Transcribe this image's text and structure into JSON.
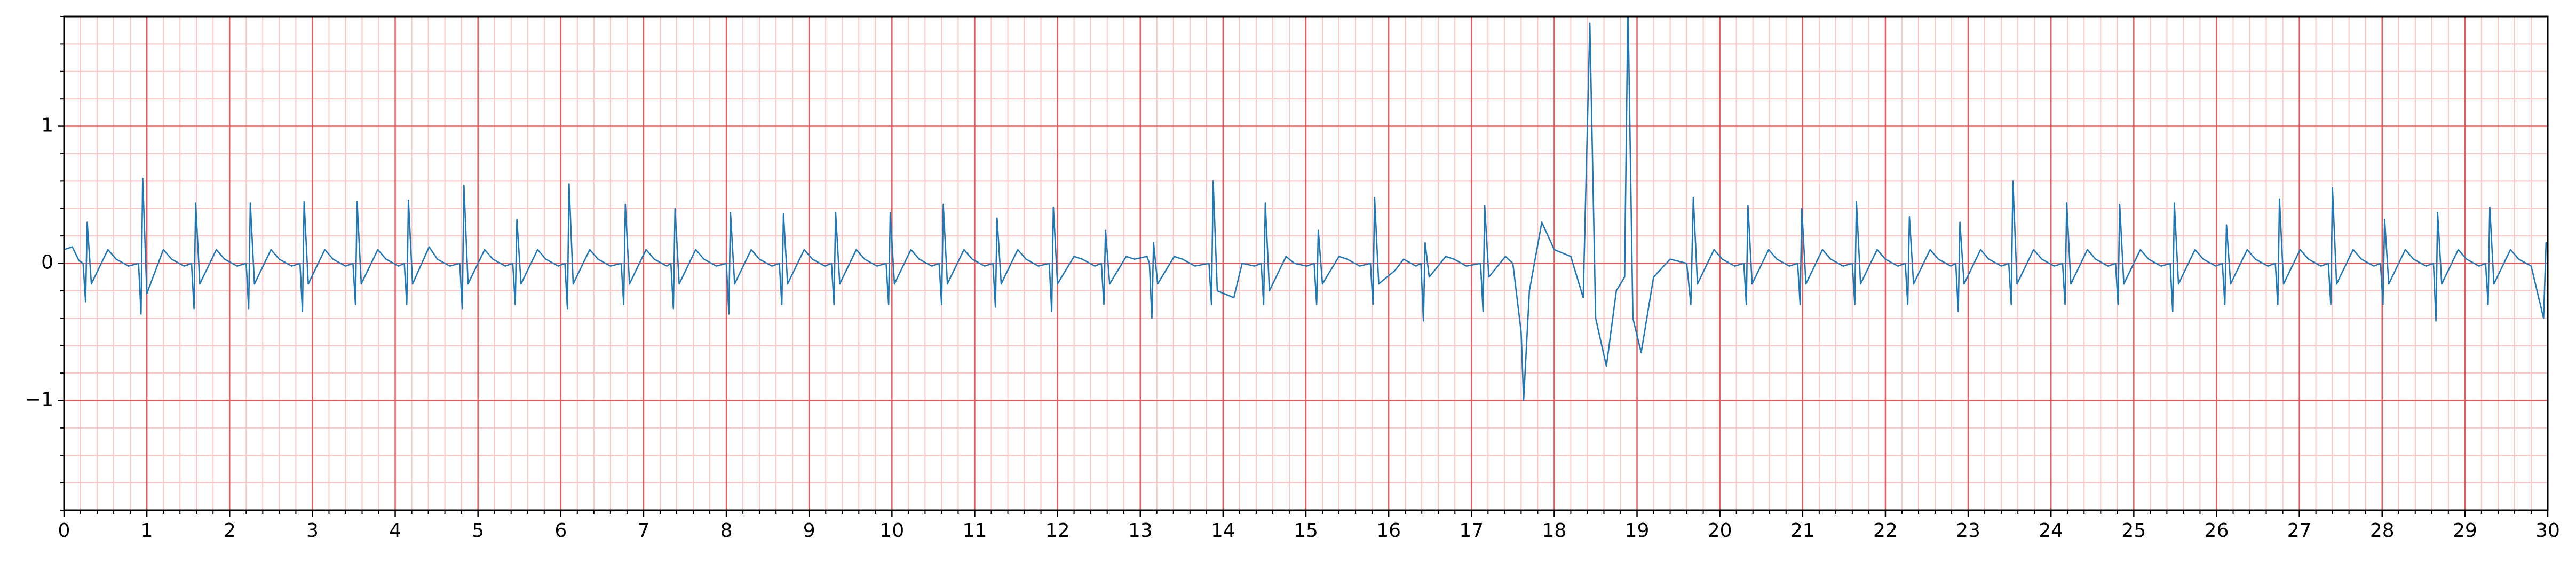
{
  "chart_data": {
    "type": "line",
    "color": "#1f77b4",
    "grid": true,
    "minor_divisions": 5,
    "xlim": [
      0,
      30
    ],
    "ylim": [
      -1.8,
      1.8
    ],
    "xticks": [
      0,
      1,
      2,
      3,
      4,
      5,
      6,
      7,
      8,
      9,
      10,
      11,
      12,
      13,
      14,
      15,
      16,
      17,
      18,
      19,
      20,
      21,
      22,
      23,
      24,
      25,
      26,
      27,
      28,
      29,
      30
    ],
    "yticks": [
      {
        "value": -1,
        "label": "−1"
      },
      0,
      1
    ],
    "x": [
      0,
      0.1,
      0.18,
      0.23,
      0.26,
      0.28,
      0.33,
      0.53,
      0.63,
      0.78,
      0.9,
      0.93,
      0.95,
      1.0,
      1.2,
      1.3,
      1.45,
      1.54,
      1.57,
      1.59,
      1.64,
      1.84,
      1.94,
      2.09,
      2.2,
      2.23,
      2.25,
      2.3,
      2.5,
      2.6,
      2.75,
      2.85,
      2.88,
      2.9,
      2.95,
      3.15,
      3.25,
      3.4,
      3.49,
      3.52,
      3.54,
      3.59,
      3.79,
      3.89,
      4.04,
      4.11,
      4.14,
      4.16,
      4.21,
      4.41,
      4.51,
      4.66,
      4.78,
      4.81,
      4.83,
      4.88,
      5.08,
      5.18,
      5.33,
      5.42,
      5.45,
      5.47,
      5.52,
      5.72,
      5.82,
      5.97,
      6.05,
      6.08,
      6.1,
      6.15,
      6.35,
      6.45,
      6.6,
      6.73,
      6.76,
      6.78,
      6.83,
      7.03,
      7.13,
      7.28,
      7.33,
      7.36,
      7.38,
      7.43,
      7.63,
      7.73,
      7.88,
      8.0,
      8.03,
      8.05,
      8.1,
      8.3,
      8.4,
      8.55,
      8.64,
      8.67,
      8.69,
      8.74,
      8.94,
      9.04,
      9.19,
      9.27,
      9.3,
      9.32,
      9.37,
      9.57,
      9.67,
      9.82,
      9.93,
      9.96,
      9.98,
      10.03,
      10.23,
      10.33,
      10.48,
      10.57,
      10.6,
      10.62,
      10.67,
      10.87,
      10.97,
      11.12,
      11.22,
      11.25,
      11.27,
      11.32,
      11.52,
      11.62,
      11.77,
      11.9,
      11.93,
      11.95,
      12.0,
      12.2,
      12.3,
      12.45,
      12.53,
      12.56,
      12.58,
      12.63,
      12.83,
      12.93,
      13.08,
      13.11,
      13.14,
      13.16,
      13.21,
      13.41,
      13.51,
      13.66,
      13.83,
      13.86,
      13.88,
      13.93,
      14.13,
      14.23,
      14.38,
      14.46,
      14.49,
      14.51,
      14.56,
      14.76,
      14.86,
      15.01,
      15.1,
      15.13,
      15.15,
      15.2,
      15.4,
      15.5,
      15.65,
      15.78,
      15.81,
      15.83,
      15.88,
      16.08,
      16.18,
      16.33,
      16.39,
      16.42,
      16.44,
      16.49,
      16.69,
      16.79,
      16.94,
      17.11,
      17.14,
      17.16,
      17.21,
      17.41,
      17.5,
      17.6,
      17.63,
      17.7,
      17.85,
      18.0,
      18.2,
      18.35,
      18.43,
      18.5,
      18.63,
      18.75,
      18.85,
      18.89,
      18.95,
      19.05,
      19.2,
      19.4,
      19.6,
      19.65,
      19.68,
      19.73,
      19.93,
      20.03,
      20.18,
      20.29,
      20.32,
      20.34,
      20.39,
      20.59,
      20.69,
      20.84,
      20.94,
      20.97,
      20.99,
      21.04,
      21.24,
      21.34,
      21.49,
      21.6,
      21.63,
      21.65,
      21.7,
      21.9,
      22.0,
      22.15,
      22.24,
      22.27,
      22.29,
      22.34,
      22.54,
      22.64,
      22.79,
      22.85,
      22.88,
      22.9,
      22.95,
      23.15,
      23.25,
      23.4,
      23.49,
      23.52,
      23.54,
      23.59,
      23.79,
      23.89,
      24.04,
      24.14,
      24.17,
      24.19,
      24.24,
      24.44,
      24.54,
      24.69,
      24.78,
      24.81,
      24.83,
      24.88,
      25.08,
      25.18,
      25.33,
      25.44,
      25.47,
      25.49,
      25.54,
      25.74,
      25.84,
      25.99,
      26.07,
      26.1,
      26.12,
      26.17,
      26.37,
      26.47,
      26.62,
      26.71,
      26.74,
      26.76,
      26.81,
      27.01,
      27.11,
      27.26,
      27.35,
      27.38,
      27.4,
      27.45,
      27.65,
      27.75,
      27.9,
      27.98,
      28.01,
      28.03,
      28.08,
      28.28,
      28.38,
      28.53,
      28.62,
      28.65,
      28.67,
      28.72,
      28.92,
      29.02,
      29.17,
      29.25,
      29.28,
      29.3,
      29.35,
      29.55,
      29.65,
      29.8,
      29.95,
      29.98,
      30.0
    ],
    "values": [
      0.1,
      0.12,
      0.02,
      0,
      -0.28,
      0.3,
      -0.15,
      0.1,
      0.03,
      -0.02,
      0,
      -0.37,
      0.62,
      -0.22,
      0.1,
      0.03,
      -0.02,
      0,
      -0.33,
      0.44,
      -0.15,
      0.1,
      0.03,
      -0.02,
      0,
      -0.33,
      0.44,
      -0.15,
      0.1,
      0.03,
      -0.02,
      0,
      -0.35,
      0.45,
      -0.15,
      0.1,
      0.03,
      -0.02,
      0,
      -0.3,
      0.45,
      -0.15,
      0.1,
      0.03,
      -0.02,
      0,
      -0.3,
      0.46,
      -0.15,
      0.12,
      0.03,
      -0.02,
      0,
      -0.33,
      0.57,
      -0.15,
      0.1,
      0.03,
      -0.02,
      0,
      -0.3,
      0.32,
      -0.15,
      0.1,
      0.03,
      -0.02,
      0,
      -0.33,
      0.58,
      -0.15,
      0.1,
      0.03,
      -0.02,
      0,
      -0.3,
      0.43,
      -0.15,
      0.1,
      0.03,
      -0.02,
      0,
      -0.33,
      0.4,
      -0.15,
      0.1,
      0.03,
      -0.02,
      0,
      -0.37,
      0.37,
      -0.15,
      0.1,
      0.03,
      -0.02,
      0,
      -0.3,
      0.36,
      -0.15,
      0.1,
      0.03,
      -0.02,
      0,
      -0.3,
      0.37,
      -0.15,
      0.1,
      0.03,
      -0.02,
      0,
      -0.3,
      0.37,
      -0.15,
      0.1,
      0.03,
      -0.02,
      0,
      -0.3,
      0.43,
      -0.15,
      0.1,
      0.03,
      -0.02,
      0,
      -0.32,
      0.33,
      -0.15,
      0.1,
      0.03,
      -0.02,
      0,
      -0.35,
      0.41,
      -0.15,
      0.05,
      0.03,
      -0.02,
      0,
      -0.3,
      0.24,
      -0.15,
      0.05,
      0.03,
      0.05,
      0,
      -0.4,
      0.15,
      -0.15,
      0.05,
      0.03,
      -0.02,
      0,
      -0.3,
      0.6,
      -0.2,
      -0.25,
      0,
      -0.02,
      0,
      -0.3,
      0.44,
      -0.2,
      0.05,
      0,
      -0.02,
      0,
      -0.3,
      0.24,
      -0.15,
      0.05,
      0.03,
      -0.02,
      0,
      -0.3,
      0.48,
      -0.15,
      -0.05,
      0.03,
      -0.02,
      0,
      -0.42,
      0.15,
      -0.1,
      0.05,
      0.03,
      -0.02,
      0,
      -0.35,
      0.42,
      -0.1,
      0.05,
      0,
      -0.5,
      -1.0,
      -0.2,
      0.3,
      0.1,
      0.05,
      -0.25,
      1.75,
      -0.4,
      -0.75,
      -0.2,
      -0.1,
      1.9,
      -0.4,
      -0.65,
      -0.1,
      0.03,
      0,
      -0.3,
      0.48,
      -0.15,
      0.1,
      0.03,
      -0.02,
      0,
      -0.3,
      0.42,
      -0.15,
      0.1,
      0.03,
      -0.02,
      0,
      -0.3,
      0.4,
      -0.15,
      0.1,
      0.03,
      -0.02,
      0,
      -0.3,
      0.45,
      -0.15,
      0.1,
      0.03,
      -0.02,
      0,
      -0.3,
      0.34,
      -0.15,
      0.1,
      0.03,
      -0.02,
      0,
      -0.35,
      0.3,
      -0.15,
      0.1,
      0.03,
      -0.02,
      0,
      -0.3,
      0.6,
      -0.15,
      0.1,
      0.03,
      -0.02,
      0,
      -0.3,
      0.44,
      -0.15,
      0.1,
      0.03,
      -0.02,
      0,
      -0.3,
      0.43,
      -0.15,
      0.1,
      0.03,
      -0.02,
      0,
      -0.35,
      0.44,
      -0.15,
      0.1,
      0.03,
      -0.02,
      0,
      -0.3,
      0.28,
      -0.15,
      0.1,
      0.03,
      -0.02,
      0,
      -0.3,
      0.47,
      -0.15,
      0.1,
      0.03,
      -0.02,
      0,
      -0.3,
      0.55,
      -0.15,
      0.1,
      0.03,
      -0.02,
      0,
      -0.3,
      0.32,
      -0.15,
      0.1,
      0.03,
      -0.02,
      0,
      -0.42,
      0.37,
      -0.15,
      0.1,
      0.03,
      -0.02,
      0,
      -0.3,
      0.41,
      -0.15,
      0.1,
      0.03,
      -0.02,
      -0.4,
      0.15,
      0.15
    ]
  }
}
